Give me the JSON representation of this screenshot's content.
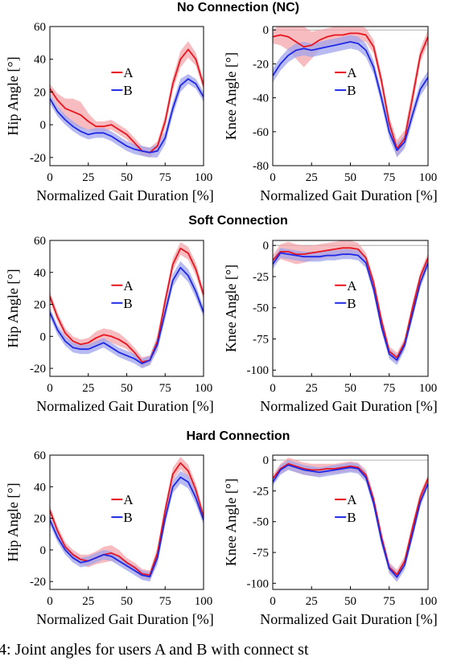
{
  "caption": "4: Joint angles for users A and B with connect st",
  "colors": {
    "A_line": "#e8141e",
    "A_band": "#f4a6aa",
    "B_line": "#1e28e6",
    "B_band": "#a0a4ec"
  },
  "rows": [
    {
      "title": "No Connection (NC)"
    },
    {
      "title": "Soft Connection"
    },
    {
      "title": "Hard Connection"
    }
  ],
  "chart_data": [
    {
      "type": "line",
      "row": 0,
      "col": 0,
      "xlabel": "Normalized Gait Duration [%]",
      "ylabel": "Hip Angle [°]",
      "xlim": [
        0,
        100
      ],
      "ylim": [
        -25,
        60
      ],
      "xticks": [
        0,
        25,
        50,
        75,
        100
      ],
      "yticks": [
        -20,
        0,
        20,
        40,
        60
      ],
      "ytick_labels": [
        "-20",
        "0",
        "20",
        "40",
        "60"
      ],
      "legend": [
        "A",
        "B"
      ],
      "legend_placement": "center-left",
      "x": [
        0,
        5,
        10,
        15,
        20,
        25,
        30,
        35,
        40,
        45,
        50,
        55,
        60,
        65,
        70,
        75,
        80,
        85,
        90,
        95,
        100
      ],
      "series": [
        {
          "name": "A",
          "values": [
            22,
            15,
            10,
            8,
            6,
            2,
            -1,
            -1,
            0,
            -3,
            -6,
            -11,
            -16,
            -17,
            -13,
            2,
            25,
            40,
            46,
            40,
            24
          ],
          "band": [
            3,
            4,
            6,
            8,
            8,
            5,
            3,
            3,
            3,
            3,
            3,
            3,
            3,
            3,
            3,
            4,
            4,
            5,
            5,
            4,
            3
          ]
        },
        {
          "name": "B",
          "values": [
            16,
            8,
            3,
            -1,
            -4,
            -6,
            -5,
            -5,
            -7,
            -10,
            -13,
            -15,
            -16,
            -17,
            -16,
            -8,
            10,
            24,
            28,
            25,
            17
          ],
          "band": [
            3,
            3,
            3,
            3,
            3,
            3,
            3,
            3,
            3,
            3,
            3,
            3,
            3,
            3,
            4,
            4,
            4,
            4,
            3,
            3,
            3
          ]
        }
      ]
    },
    {
      "type": "line",
      "row": 0,
      "col": 1,
      "xlabel": "Normalized Gait Duration [%]",
      "ylabel": "Knee Angle [°]",
      "xlim": [
        0,
        100
      ],
      "ylim": [
        -80,
        2
      ],
      "xticks": [
        0,
        25,
        50,
        75,
        100
      ],
      "yticks": [
        -80,
        -60,
        -40,
        -20,
        0
      ],
      "ytick_labels": [
        "-80",
        "-60",
        "-40",
        "-20",
        "0"
      ],
      "legend": [
        "A",
        "B"
      ],
      "legend_placement": "center-right",
      "x": [
        0,
        5,
        10,
        15,
        20,
        25,
        30,
        35,
        40,
        45,
        50,
        55,
        60,
        65,
        70,
        75,
        80,
        85,
        90,
        95,
        100
      ],
      "series": [
        {
          "name": "A",
          "values": [
            -4,
            -3,
            -4,
            -7,
            -10,
            -9,
            -6,
            -4,
            -3,
            -3,
            -2,
            -2,
            -3,
            -10,
            -30,
            -55,
            -70,
            -64,
            -40,
            -15,
            -4
          ],
          "band": [
            4,
            6,
            8,
            10,
            12,
            8,
            6,
            5,
            5,
            5,
            5,
            5,
            4,
            4,
            4,
            4,
            5,
            5,
            5,
            4,
            4
          ]
        },
        {
          "name": "B",
          "values": [
            -27,
            -20,
            -15,
            -12,
            -11,
            -12,
            -11,
            -10,
            -9,
            -8,
            -7,
            -8,
            -12,
            -22,
            -40,
            -60,
            -71,
            -66,
            -50,
            -35,
            -28
          ],
          "band": [
            4,
            4,
            4,
            4,
            4,
            4,
            4,
            4,
            4,
            4,
            4,
            4,
            4,
            4,
            4,
            4,
            4,
            4,
            4,
            4,
            4
          ]
        }
      ]
    },
    {
      "type": "line",
      "row": 1,
      "col": 0,
      "xlabel": "Normalized Gait Duration [%]",
      "ylabel": "Hip Angle [°]",
      "xlim": [
        0,
        100
      ],
      "ylim": [
        -25,
        60
      ],
      "xticks": [
        0,
        25,
        50,
        75,
        100
      ],
      "yticks": [
        -20,
        0,
        20,
        40,
        60
      ],
      "ytick_labels": [
        "-20",
        "0",
        "20",
        "40",
        "60"
      ],
      "legend": [
        "A",
        "B"
      ],
      "legend_placement": "center-right",
      "x": [
        0,
        5,
        10,
        15,
        20,
        25,
        30,
        35,
        40,
        45,
        50,
        55,
        60,
        65,
        70,
        75,
        80,
        85,
        90,
        95,
        100
      ],
      "series": [
        {
          "name": "A",
          "values": [
            25,
            12,
            2,
            -3,
            -5,
            -4,
            -1,
            1,
            0,
            -2,
            -5,
            -10,
            -16,
            -15,
            -3,
            22,
            45,
            55,
            52,
            42,
            26
          ],
          "band": [
            3,
            3,
            3,
            3,
            3,
            3,
            4,
            4,
            4,
            4,
            3,
            3,
            3,
            3,
            4,
            4,
            4,
            4,
            4,
            4,
            3
          ]
        },
        {
          "name": "B",
          "values": [
            15,
            4,
            -3,
            -7,
            -8,
            -8,
            -6,
            -4,
            -7,
            -10,
            -12,
            -14,
            -17,
            -15,
            -5,
            15,
            35,
            43,
            38,
            28,
            15
          ],
          "band": [
            3,
            3,
            3,
            3,
            3,
            3,
            3,
            3,
            3,
            3,
            3,
            3,
            3,
            3,
            4,
            4,
            4,
            4,
            4,
            4,
            3
          ]
        }
      ]
    },
    {
      "type": "line",
      "row": 1,
      "col": 1,
      "xlabel": "Normalized Gait Duration [%]",
      "ylabel": "Knee Angle [°]",
      "xlim": [
        0,
        100
      ],
      "ylim": [
        -105,
        4
      ],
      "xticks": [
        0,
        25,
        50,
        75,
        100
      ],
      "yticks": [
        -100,
        -75,
        -50,
        -25,
        0
      ],
      "ytick_labels": [
        "-100",
        "-75",
        "-50",
        "-25",
        "0"
      ],
      "legend": [
        "A",
        "B"
      ],
      "legend_placement": "center-left",
      "x": [
        0,
        5,
        10,
        15,
        20,
        25,
        30,
        35,
        40,
        45,
        50,
        55,
        60,
        65,
        70,
        75,
        80,
        85,
        90,
        95,
        100
      ],
      "series": [
        {
          "name": "A",
          "values": [
            -12,
            -5,
            -5,
            -7,
            -7,
            -6,
            -5,
            -4,
            -3,
            -2,
            -2,
            -3,
            -10,
            -30,
            -60,
            -85,
            -90,
            -78,
            -50,
            -25,
            -10
          ],
          "band": [
            4,
            6,
            8,
            8,
            7,
            6,
            6,
            6,
            6,
            6,
            6,
            5,
            4,
            4,
            4,
            4,
            4,
            4,
            4,
            4,
            4
          ]
        },
        {
          "name": "B",
          "values": [
            -15,
            -6,
            -7,
            -8,
            -9,
            -9,
            -9,
            -8,
            -8,
            -7,
            -7,
            -8,
            -14,
            -35,
            -65,
            -87,
            -92,
            -80,
            -55,
            -30,
            -14
          ],
          "band": [
            4,
            4,
            4,
            4,
            4,
            4,
            4,
            4,
            4,
            4,
            4,
            4,
            4,
            4,
            4,
            4,
            4,
            4,
            4,
            4,
            4
          ]
        }
      ]
    },
    {
      "type": "line",
      "row": 2,
      "col": 0,
      "xlabel": "Normalized Gait Duration [%]",
      "ylabel": "Hip Angle [°]",
      "xlim": [
        0,
        100
      ],
      "ylim": [
        -25,
        60
      ],
      "xticks": [
        0,
        25,
        50,
        75,
        100
      ],
      "yticks": [
        -20,
        0,
        20,
        40,
        60
      ],
      "ytick_labels": [
        "-20",
        "0",
        "20",
        "40",
        "60"
      ],
      "legend": [
        "A",
        "B"
      ],
      "legend_placement": "center-right",
      "x": [
        0,
        5,
        10,
        15,
        20,
        25,
        30,
        35,
        40,
        45,
        50,
        55,
        60,
        65,
        70,
        75,
        80,
        85,
        90,
        95,
        100
      ],
      "series": [
        {
          "name": "A",
          "values": [
            25,
            12,
            2,
            -3,
            -6,
            -7,
            -5,
            -3,
            -2,
            -4,
            -8,
            -11,
            -15,
            -16,
            -2,
            25,
            48,
            55,
            50,
            38,
            21
          ],
          "band": [
            3,
            3,
            3,
            3,
            3,
            4,
            4,
            5,
            5,
            4,
            3,
            3,
            3,
            3,
            4,
            4,
            4,
            4,
            4,
            4,
            3
          ]
        },
        {
          "name": "B",
          "values": [
            19,
            8,
            0,
            -5,
            -8,
            -7,
            -5,
            -3,
            -4,
            -7,
            -10,
            -13,
            -16,
            -17,
            -5,
            20,
            40,
            46,
            43,
            33,
            19
          ],
          "band": [
            3,
            3,
            3,
            3,
            3,
            3,
            3,
            3,
            3,
            3,
            3,
            3,
            3,
            3,
            4,
            4,
            4,
            4,
            4,
            4,
            3
          ]
        }
      ]
    },
    {
      "type": "line",
      "row": 2,
      "col": 1,
      "xlabel": "Normalized Gait Duration [%]",
      "ylabel": "Knee Angle [°]",
      "xlim": [
        0,
        100
      ],
      "ylim": [
        -105,
        4
      ],
      "xticks": [
        0,
        25,
        50,
        75,
        100
      ],
      "yticks": [
        -100,
        -75,
        -50,
        -25,
        0
      ],
      "ytick_labels": [
        "-100",
        "-75",
        "-50",
        "-25",
        "0"
      ],
      "legend": [
        "A",
        "B"
      ],
      "legend_placement": "center-left",
      "x": [
        0,
        5,
        10,
        15,
        20,
        25,
        30,
        35,
        40,
        45,
        50,
        55,
        60,
        65,
        70,
        75,
        80,
        85,
        90,
        95,
        100
      ],
      "series": [
        {
          "name": "A",
          "values": [
            -15,
            -7,
            -3,
            -5,
            -7,
            -8,
            -8,
            -7,
            -7,
            -6,
            -5,
            -6,
            -12,
            -32,
            -62,
            -87,
            -93,
            -82,
            -55,
            -30,
            -15
          ],
          "band": [
            3,
            4,
            5,
            5,
            5,
            5,
            5,
            4,
            4,
            4,
            4,
            4,
            4,
            4,
            4,
            4,
            4,
            4,
            4,
            4,
            3
          ]
        },
        {
          "name": "B",
          "values": [
            -18,
            -8,
            -4,
            -6,
            -8,
            -9,
            -10,
            -9,
            -8,
            -7,
            -6,
            -7,
            -14,
            -35,
            -65,
            -88,
            -95,
            -85,
            -60,
            -34,
            -19
          ],
          "band": [
            3,
            4,
            4,
            4,
            4,
            4,
            4,
            4,
            4,
            4,
            4,
            4,
            4,
            4,
            4,
            4,
            4,
            4,
            4,
            4,
            3
          ]
        }
      ]
    }
  ]
}
